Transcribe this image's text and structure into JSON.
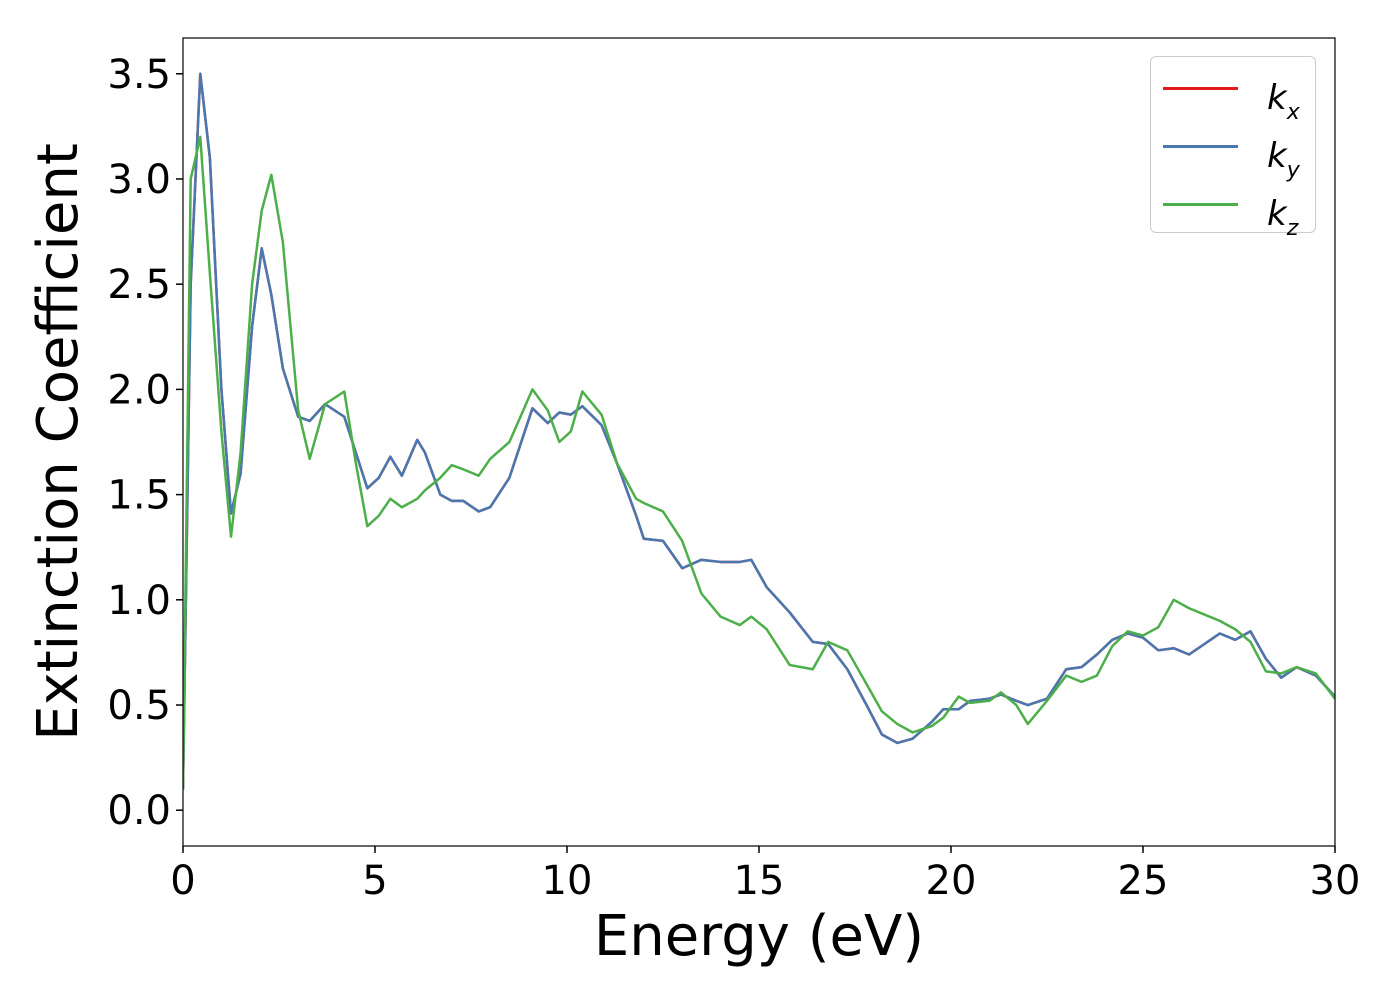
{
  "chart_data": {
    "type": "line",
    "xlabel": "Energy (eV)",
    "ylabel": "Extinction Coefficient",
    "x": [
      0,
      0.2,
      0.45,
      0.7,
      1.0,
      1.25,
      1.5,
      1.8,
      2.05,
      2.3,
      2.6,
      3.0,
      3.3,
      3.7,
      4.2,
      4.5,
      4.8,
      5.1,
      5.4,
      5.7,
      6.1,
      6.3,
      6.7,
      7.0,
      7.3,
      7.7,
      8.0,
      8.5,
      9.1,
      9.5,
      9.8,
      10.1,
      10.4,
      10.9,
      11.3,
      11.8,
      12.0,
      12.5,
      13.0,
      13.5,
      14.0,
      14.5,
      14.8,
      15.2,
      15.8,
      16.4,
      16.8,
      17.3,
      17.8,
      18.2,
      18.6,
      19.0,
      19.5,
      19.8,
      20.2,
      20.5,
      21.0,
      21.3,
      21.7,
      22.0,
      22.5,
      23.0,
      23.4,
      23.8,
      24.2,
      24.6,
      25.0,
      25.4,
      25.8,
      26.2,
      26.6,
      27.0,
      27.4,
      27.8,
      28.2,
      28.6,
      29.0,
      29.5,
      30
    ],
    "series": [
      {
        "name": "kx",
        "color": "#e41a1c",
        "values": [
          0.1,
          2.5,
          3.5,
          3.1,
          2.0,
          1.41,
          1.6,
          2.3,
          2.67,
          2.45,
          2.1,
          1.87,
          1.85,
          1.93,
          1.87,
          1.7,
          1.53,
          1.58,
          1.68,
          1.59,
          1.76,
          1.7,
          1.5,
          1.47,
          1.47,
          1.42,
          1.44,
          1.58,
          1.91,
          1.84,
          1.89,
          1.88,
          1.92,
          1.83,
          1.65,
          1.4,
          1.29,
          1.28,
          1.15,
          1.19,
          1.18,
          1.18,
          1.19,
          1.06,
          0.94,
          0.8,
          0.79,
          0.67,
          0.5,
          0.36,
          0.32,
          0.34,
          0.42,
          0.48,
          0.48,
          0.52,
          0.53,
          0.55,
          0.52,
          0.5,
          0.53,
          0.67,
          0.68,
          0.74,
          0.81,
          0.84,
          0.82,
          0.76,
          0.77,
          0.74,
          0.79,
          0.84,
          0.81,
          0.85,
          0.72,
          0.63,
          0.68,
          0.64,
          0.54
        ]
      },
      {
        "name": "ky",
        "color": "#4878b0",
        "values": [
          0.1,
          2.5,
          3.5,
          3.1,
          2.0,
          1.41,
          1.6,
          2.3,
          2.67,
          2.45,
          2.1,
          1.87,
          1.85,
          1.93,
          1.87,
          1.7,
          1.53,
          1.58,
          1.68,
          1.59,
          1.76,
          1.7,
          1.5,
          1.47,
          1.47,
          1.42,
          1.44,
          1.58,
          1.91,
          1.84,
          1.89,
          1.88,
          1.92,
          1.83,
          1.65,
          1.4,
          1.29,
          1.28,
          1.15,
          1.19,
          1.18,
          1.18,
          1.19,
          1.06,
          0.94,
          0.8,
          0.79,
          0.67,
          0.5,
          0.36,
          0.32,
          0.34,
          0.42,
          0.48,
          0.48,
          0.52,
          0.53,
          0.55,
          0.52,
          0.5,
          0.53,
          0.67,
          0.68,
          0.74,
          0.81,
          0.84,
          0.82,
          0.76,
          0.77,
          0.74,
          0.79,
          0.84,
          0.81,
          0.85,
          0.72,
          0.63,
          0.68,
          0.64,
          0.54
        ]
      },
      {
        "name": "kz",
        "color": "#4daf4a",
        "values": [
          0.1,
          3.0,
          3.2,
          2.55,
          1.8,
          1.3,
          1.7,
          2.5,
          2.85,
          3.02,
          2.7,
          1.9,
          1.67,
          1.93,
          1.99,
          1.65,
          1.35,
          1.4,
          1.48,
          1.44,
          1.48,
          1.52,
          1.58,
          1.64,
          1.62,
          1.59,
          1.67,
          1.75,
          2.0,
          1.9,
          1.75,
          1.8,
          1.99,
          1.88,
          1.65,
          1.48,
          1.46,
          1.42,
          1.28,
          1.03,
          0.92,
          0.88,
          0.92,
          0.86,
          0.69,
          0.67,
          0.8,
          0.76,
          0.6,
          0.47,
          0.41,
          0.37,
          0.4,
          0.44,
          0.54,
          0.51,
          0.52,
          0.56,
          0.5,
          0.41,
          0.52,
          0.64,
          0.61,
          0.64,
          0.78,
          0.85,
          0.83,
          0.87,
          1.0,
          0.96,
          0.93,
          0.9,
          0.86,
          0.8,
          0.66,
          0.65,
          0.68,
          0.65,
          0.53
        ]
      }
    ],
    "xlim": [
      0,
      30
    ],
    "xticks": [
      0,
      5,
      10,
      15,
      20,
      25,
      30
    ],
    "ylim": [
      -0.17,
      3.67
    ],
    "yticks": [
      {
        "value": 0,
        "label": "0.0"
      },
      {
        "value": 0.5,
        "label": "0.5"
      },
      {
        "value": 1,
        "label": "1.0"
      },
      {
        "value": 1.5,
        "label": "1.5"
      },
      {
        "value": 2,
        "label": "2.0"
      },
      {
        "value": 2.5,
        "label": "2.5"
      },
      {
        "value": 3,
        "label": "3.0"
      },
      {
        "value": 3.5,
        "label": "3.5"
      }
    ],
    "grid": false,
    "legend": "upper right"
  }
}
